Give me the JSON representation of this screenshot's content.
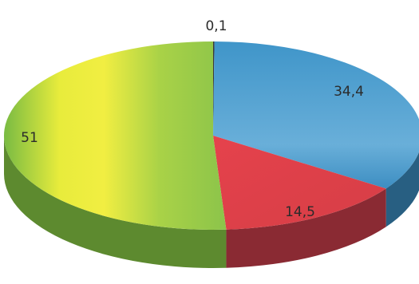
{
  "chart_data": {
    "type": "pie",
    "style": "3d",
    "title": "",
    "slices": [
      {
        "label": "0,1",
        "value": 0.1,
        "color": "#3a3a3a"
      },
      {
        "label": "34,4",
        "value": 34.4,
        "color": "#4f9fd0"
      },
      {
        "label": "14,5",
        "value": 14.5,
        "color": "#e24a52"
      },
      {
        "label": "51",
        "value": 51,
        "color": "#a6cf47"
      }
    ],
    "legend": "none"
  }
}
